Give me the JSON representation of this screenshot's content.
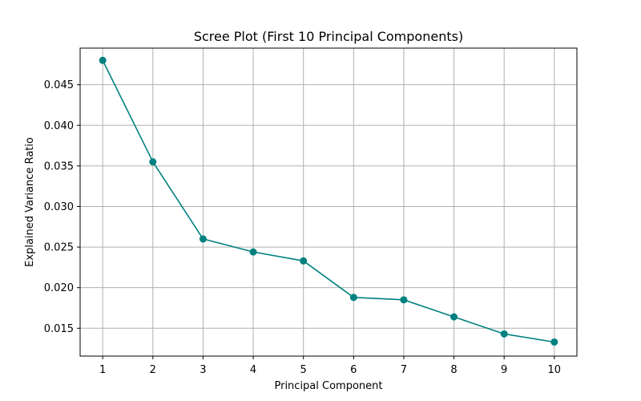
{
  "chart_data": {
    "type": "line",
    "title": "Scree Plot (First 10 Principal Components)",
    "xlabel": "Principal Component",
    "ylabel": "Explained Variance Ratio",
    "x": [
      1,
      2,
      3,
      4,
      5,
      6,
      7,
      8,
      9,
      10
    ],
    "series": [
      {
        "values": [
          0.048,
          0.0355,
          0.026,
          0.0244,
          0.0233,
          0.0188,
          0.0185,
          0.0164,
          0.0143,
          0.0133
        ],
        "color": "#008080",
        "marker": "circle"
      }
    ],
    "xticks": [
      "1",
      "2",
      "3",
      "4",
      "5",
      "6",
      "7",
      "8",
      "9",
      "10"
    ],
    "yticks": [
      "0.015",
      "0.020",
      "0.025",
      "0.030",
      "0.035",
      "0.040",
      "0.045"
    ],
    "ytick_values": [
      0.015,
      0.02,
      0.025,
      0.03,
      0.035,
      0.04,
      0.045
    ],
    "xlim": [
      0.55,
      10.45
    ],
    "ylim": [
      0.01157,
      0.04951
    ],
    "grid": true,
    "grid_color": "#b0b0b0"
  }
}
